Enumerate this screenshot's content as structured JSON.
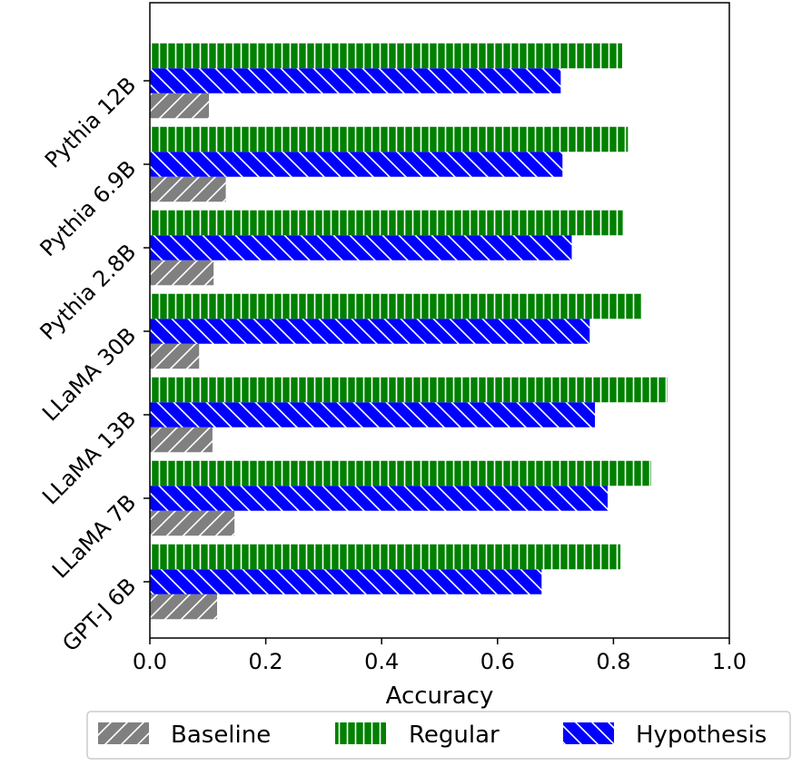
{
  "chart_data": {
    "type": "bar",
    "orientation": "horizontal",
    "xlabel": "Accuracy",
    "ylabel": "",
    "xlim": [
      0.0,
      1.0
    ],
    "x_ticks": [
      "0.0",
      "0.2",
      "0.4",
      "0.6",
      "0.8",
      "1.0"
    ],
    "categories": [
      "GPT-J 6B",
      "LLaMA 7B",
      "LLaMA 13B",
      "LLaMA 30B",
      "Pythia 2.8B",
      "Pythia 6.9B",
      "Pythia 12B"
    ],
    "series": [
      {
        "name": "Baseline",
        "values": [
          0.116,
          0.146,
          0.108,
          0.085,
          0.11,
          0.131,
          0.102
        ],
        "color": "#808080",
        "hatch": "//"
      },
      {
        "name": "Hypothesis",
        "values": [
          0.676,
          0.79,
          0.768,
          0.759,
          0.728,
          0.712,
          0.709
        ],
        "color": "#0000ff",
        "hatch": "\\\\"
      },
      {
        "name": "Regular",
        "values": [
          0.812,
          0.865,
          0.893,
          0.848,
          0.816,
          0.825,
          0.815
        ],
        "color": "#008000",
        "hatch": "||"
      }
    ],
    "legend": {
      "position": "bottom",
      "entries": [
        "Baseline",
        "Regular",
        "Hypothesis"
      ]
    }
  }
}
